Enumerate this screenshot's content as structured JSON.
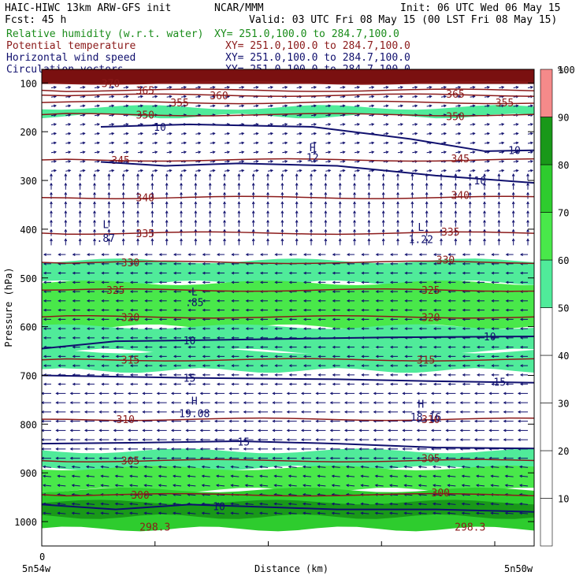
{
  "header": {
    "model_line": "HAIC-HIWC 13km ARW-GFS init",
    "org": "NCAR/MMM",
    "init": "Init: 06 UTC Wed 06 May 15",
    "fcst": "Fcst:   45 h",
    "valid": "Valid: 03 UTC Fri 08 May 15 (00 LST Fri 08 May 15)",
    "fields": [
      {
        "name": "Relative humidity (w.r.t. water)",
        "xy": "XY= 251.0,100.0 to 284.7,100.0",
        "color": "#1a8c1a"
      },
      {
        "name": "Potential temperature",
        "xy": "XY= 251.0,100.0 to 284.7,100.0",
        "color": "#8b1a1a"
      },
      {
        "name": "Horizontal wind speed",
        "xy": "XY= 251.0,100.0 to 284.7,100.0",
        "color": "#10106e"
      },
      {
        "name": "Circulation vectors",
        "xy": "XY= 251.0,100.0 to 284.7,100.0",
        "color": "#10106e"
      }
    ]
  },
  "chart_data": {
    "type": "heatmap",
    "xlabel": "Distance (km)",
    "ylabel": "Pressure (hPa)",
    "x_tick_label": "0",
    "x_left_label": "5n54w",
    "x_right_label": "5n50w",
    "y_ticks": [
      100,
      200,
      300,
      400,
      500,
      600,
      700,
      800,
      900,
      1000
    ],
    "y_range": [
      1050,
      72
    ],
    "x_fraction_range": [
      0,
      1
    ],
    "colorbar": {
      "unit": "%",
      "levels": [
        10,
        20,
        30,
        40,
        50,
        60,
        70,
        80,
        90,
        100
      ],
      "colors": [
        "#ffffff",
        "#ffffff",
        "#ffffff",
        "#ffffff",
        "#ffffff",
        "#50eb9a",
        "#49e84a",
        "#2ecc2e",
        "#199819",
        "#f58a8a"
      ]
    },
    "rh_bands": [
      {
        "p_top": 72,
        "p_bottom": 78,
        "value": 100
      },
      {
        "p_top": 150,
        "p_bottom": 168,
        "value": 60
      },
      {
        "p_top": 465,
        "p_bottom": 510,
        "value": 60
      },
      {
        "p_top": 510,
        "p_bottom": 600,
        "value": 70
      },
      {
        "p_top": 600,
        "p_bottom": 650,
        "value": 60
      },
      {
        "p_top": 650,
        "p_bottom": 690,
        "value": 60
      },
      {
        "p_top": 855,
        "p_bottom": 890,
        "value": 60
      },
      {
        "p_top": 890,
        "p_bottom": 935,
        "value": 70
      },
      {
        "p_top": 935,
        "p_bottom": 1015,
        "value": 80
      },
      {
        "p_top": 960,
        "p_bottom": 990,
        "value": 90
      }
    ],
    "theta_contours": [
      {
        "p": 100,
        "label": "370",
        "x_label": 0.14
      },
      {
        "p": 115,
        "label": "365",
        "x_label": 0.21
      },
      {
        "p": 125,
        "label": "360",
        "x_label": 0.36
      },
      {
        "p": 140,
        "label": "355",
        "x_label": 0.28
      },
      {
        "p": 165,
        "label": "350",
        "x_label": 0.21
      },
      {
        "p": 258,
        "label": "345",
        "x_label": 0.16
      },
      {
        "p": 335,
        "label": "340",
        "x_label": 0.21
      },
      {
        "p": 408,
        "label": "335",
        "x_label": 0.21
      },
      {
        "p": 468,
        "label": "330",
        "x_label": 0.18
      },
      {
        "p": 525,
        "label": "325",
        "x_label": 0.15
      },
      {
        "p": 580,
        "label": "320",
        "x_label": 0.18
      },
      {
        "p": 668,
        "label": "315",
        "x_label": 0.18
      },
      {
        "p": 790,
        "label": "310",
        "x_label": 0.17
      },
      {
        "p": 875,
        "label": "305",
        "x_label": 0.18
      },
      {
        "p": 945,
        "label": "300",
        "x_label": 0.2
      }
    ],
    "theta_right_labels": [
      {
        "p": 122,
        "label": "365",
        "x": 0.84
      },
      {
        "p": 140,
        "label": "355",
        "x": 0.94
      },
      {
        "p": 168,
        "label": "350",
        "x": 0.84
      },
      {
        "p": 255,
        "label": "345",
        "x": 0.85
      },
      {
        "p": 330,
        "label": "340",
        "x": 0.85
      },
      {
        "p": 405,
        "label": "335",
        "x": 0.83
      },
      {
        "p": 462,
        "label": "330",
        "x": 0.82
      },
      {
        "p": 525,
        "label": "325",
        "x": 0.79
      },
      {
        "p": 580,
        "label": "320",
        "x": 0.79
      },
      {
        "p": 668,
        "label": "315",
        "x": 0.78
      },
      {
        "p": 790,
        "label": "310",
        "x": 0.79
      },
      {
        "p": 870,
        "label": "305",
        "x": 0.79
      },
      {
        "p": 940,
        "label": "300",
        "x": 0.81
      }
    ],
    "theta_bottom_labels": [
      {
        "p": 1010,
        "label": "298.3",
        "x": 0.23
      },
      {
        "p": 1010,
        "label": "298.3",
        "x": 0.87
      }
    ],
    "wind_contours": [
      {
        "label": "10",
        "points": [
          [
            0.12,
            190
          ],
          [
            0.3,
            185
          ],
          [
            0.55,
            190
          ],
          [
            0.75,
            215
          ],
          [
            0.9,
            240
          ],
          [
            1.0,
            238
          ]
        ],
        "labels": [
          {
            "x": 0.24,
            "p": 190
          },
          {
            "x": 0.96,
            "p": 238
          }
        ]
      },
      {
        "label": "10",
        "points": [
          [
            0.12,
            262
          ],
          [
            0.25,
            270
          ],
          [
            0.4,
            265
          ],
          [
            0.6,
            270
          ],
          [
            0.8,
            290
          ],
          [
            1.0,
            305
          ]
        ],
        "labels": [
          {
            "x": 0.89,
            "p": 300
          }
        ]
      },
      {
        "label": "10",
        "points": [
          [
            0.0,
            645
          ],
          [
            0.15,
            630
          ],
          [
            0.3,
            628
          ],
          [
            0.5,
            625
          ],
          [
            0.7,
            622
          ],
          [
            1.0,
            620
          ]
        ],
        "labels": [
          {
            "x": 0.3,
            "p": 628
          },
          {
            "x": 0.91,
            "p": 620
          }
        ]
      },
      {
        "label": "15",
        "points": [
          [
            0.0,
            700
          ],
          [
            0.3,
            705
          ],
          [
            0.6,
            708
          ],
          [
            0.8,
            712
          ],
          [
            1.0,
            715
          ]
        ],
        "labels": [
          {
            "x": 0.3,
            "p": 705
          },
          {
            "x": 0.93,
            "p": 713
          }
        ]
      },
      {
        "label": "15",
        "points": [
          [
            0.0,
            840
          ],
          [
            0.2,
            838
          ],
          [
            0.4,
            835
          ],
          [
            0.6,
            840
          ],
          [
            0.8,
            848
          ],
          [
            1.0,
            850
          ]
        ],
        "labels": [
          {
            "x": 0.41,
            "p": 836
          }
        ]
      },
      {
        "label": "10",
        "points": [
          [
            0.0,
            965
          ],
          [
            0.15,
            975
          ],
          [
            0.3,
            965
          ],
          [
            0.45,
            970
          ],
          [
            0.6,
            975
          ],
          [
            0.8,
            975
          ],
          [
            1.0,
            980
          ]
        ],
        "labels": [
          {
            "x": 0.36,
            "p": 968
          }
        ]
      }
    ],
    "annotations": [
      {
        "text": "H",
        "x": 0.55,
        "p": 232,
        "color": "#10106e"
      },
      {
        "text": "12",
        "x": 0.55,
        "p": 252,
        "color": "#10106e"
      },
      {
        "text": "L",
        "x": 0.13,
        "p": 390,
        "color": "#10106e"
      },
      {
        "text": ".87",
        "x": 0.13,
        "p": 418,
        "color": "#10106e"
      },
      {
        "text": "L",
        "x": 0.77,
        "p": 395,
        "color": "#10106e"
      },
      {
        "text": "1.22",
        "x": 0.77,
        "p": 420,
        "color": "#10106e"
      },
      {
        "text": "L",
        "x": 0.31,
        "p": 528,
        "color": "#10106e"
      },
      {
        "text": ".85",
        "x": 0.31,
        "p": 550,
        "color": "#10106e"
      },
      {
        "text": "H",
        "x": 0.31,
        "p": 752,
        "color": "#10106e"
      },
      {
        "text": "19.08",
        "x": 0.31,
        "p": 778,
        "color": "#10106e"
      },
      {
        "text": "H",
        "x": 0.77,
        "p": 758,
        "color": "#10106e"
      },
      {
        "text": "18.16",
        "x": 0.78,
        "p": 785,
        "color": "#10106e"
      }
    ]
  }
}
